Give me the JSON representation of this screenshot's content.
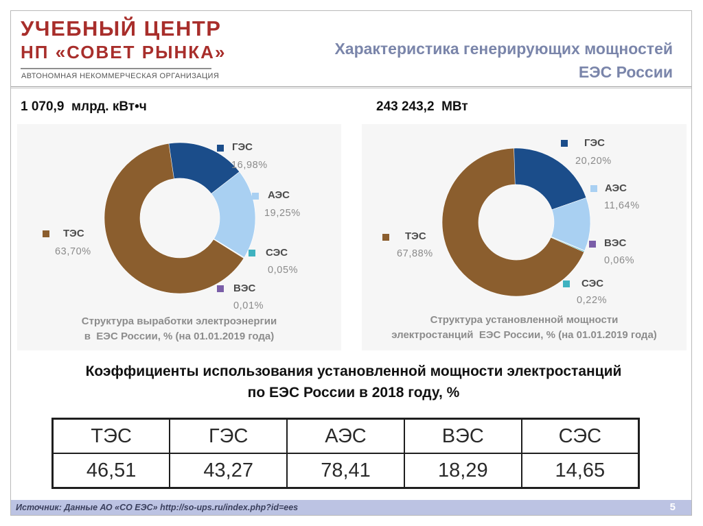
{
  "logo": {
    "line1": "УЧЕБНЫЙ ЦЕНТР",
    "line2": "НП «СОВЕТ РЫНКА»",
    "subtitle": "АВТОНОМНАЯ НЕКОММЕРЧЕСКАЯ ОРГАНИЗАЦИЯ"
  },
  "title": {
    "line1": "Характеристика генерирующих мощностей",
    "line2": "ЕЭС России"
  },
  "left_total": "1 070,9  млрд. кВт•ч",
  "right_total": "243 243,2  МВт",
  "colors": {
    "logo": "#a82e2b",
    "title": "#7a85aa",
    "TES": "#8b5e2e",
    "GES": "#1b4d8a",
    "AES": "#a9d0f2",
    "SES": "#3fb2c0",
    "VES": "#7a5ea8",
    "footer": "#bcc3e3"
  },
  "chart_data": [
    {
      "type": "pie",
      "variant": "donut",
      "caption_lines": [
        "Структура выработки электроэнергии",
        "в  ЕЭС России, % (на 01.01.2019 года)"
      ],
      "slices": [
        {
          "name": "ГЭС",
          "value": 16.98,
          "label": "16,98%",
          "color": "#1b4d8a"
        },
        {
          "name": "АЭС",
          "value": 19.25,
          "label": "19,25%",
          "color": "#a9d0f2"
        },
        {
          "name": "СЭС",
          "value": 0.05,
          "label": "0,05%",
          "color": "#3fb2c0"
        },
        {
          "name": "ВЭС",
          "value": 0.01,
          "label": "0,01%",
          "color": "#7a5ea8"
        },
        {
          "name": "ТЭС",
          "value": 63.7,
          "label": "63,70%",
          "color": "#8b5e2e"
        }
      ]
    },
    {
      "type": "pie",
      "variant": "donut",
      "caption_lines": [
        "Структура установленной мощности",
        "электростанций  ЕЭС России, % (на 01.01.2019 года)"
      ],
      "slices": [
        {
          "name": "ГЭС",
          "value": 20.2,
          "label": "20,20%",
          "color": "#1b4d8a"
        },
        {
          "name": "АЭС",
          "value": 11.64,
          "label": "11,64%",
          "color": "#a9d0f2"
        },
        {
          "name": "ВЭС",
          "value": 0.06,
          "label": "0,06%",
          "color": "#7a5ea8"
        },
        {
          "name": "СЭС",
          "value": 0.22,
          "label": "0,22%",
          "color": "#3fb2c0"
        },
        {
          "name": "ТЭС",
          "value": 67.88,
          "label": "67,88%",
          "color": "#8b5e2e"
        }
      ]
    },
    {
      "type": "table",
      "title_lines": [
        "Коэффициенты использования установленной мощности электростанций",
        "по ЕЭС России в 2018 году, %"
      ],
      "headers": [
        "ТЭС",
        "ГЭС",
        "АЭС",
        "ВЭС",
        "СЭС"
      ],
      "values": [
        "46,51",
        "43,27",
        "78,41",
        "18,29",
        "14,65"
      ]
    }
  ],
  "footer": {
    "source": "Источник: Данные АО «СО ЕЭС» http://so-ups.ru/index.php?id=ees",
    "page_number": "5"
  }
}
